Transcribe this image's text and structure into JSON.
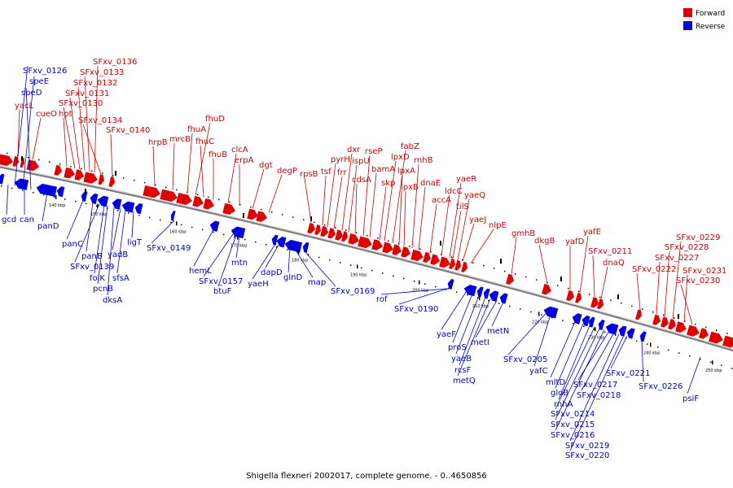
{
  "legend": {
    "forward_label": "Forward",
    "reverse_label": "Reverse",
    "forward_color": "#e00000",
    "reverse_color": "#0000e0"
  },
  "caption": "Shigella flexneri 2002017, complete genome. - 0..4650856",
  "scale_ticks": [
    "140 kbp",
    "150 kbp",
    "160 kbp",
    "170 kbp",
    "180 kbp",
    "190 kbp",
    "200 kbp",
    "210 kbp",
    "220 kbp",
    "230 kbp",
    "240 kbp",
    "250 kbp"
  ],
  "forward_genes": [
    "yacL",
    "cueO",
    "hpt",
    "SFxv_0130",
    "SFxv_0131",
    "SFxv_0132",
    "SFxv_0133",
    "SFxv_0136",
    "SFxv_0134",
    "SFxv_0140",
    "hrpB",
    "mrcB",
    "fhuA",
    "fhuD",
    "fhuC",
    "fhuB",
    "clcA",
    "erpA",
    "dgt",
    "degP",
    "rpsB",
    "tsf",
    "pyrH",
    "frr",
    "dxr",
    "ispU",
    "cdsA",
    "rseP",
    "bamA",
    "skp",
    "lpxD",
    "fabZ",
    "lpxA",
    "lpxB",
    "rnhB",
    "dnaE",
    "accA",
    "ldcC",
    "yaeR",
    "tilS",
    "yaeQ",
    "yaeJ",
    "nlpE",
    "gmhB",
    "dkgB",
    "yafD",
    "yafE",
    "SFxv_0211",
    "dnaQ",
    "SFxv_0222",
    "SFxv_0227",
    "SFxv_0228",
    "SFxv_0229",
    "SFxv_0231",
    "SFxv_0230"
  ],
  "reverse_genes": [
    "SFxv_0126",
    "speE",
    "speD",
    "gcd",
    "can",
    "panD",
    "panC",
    "panB",
    "SFxv_0139",
    "folK",
    "pcnB",
    "dksA",
    "yadB",
    "sfsA",
    "ligT",
    "SFxv_0149",
    "hemL",
    "SFxv_0157",
    "btuF",
    "mtn",
    "yaeH",
    "dapD",
    "glnD",
    "map",
    "SFxv_0169",
    "rof",
    "SFxv_0190",
    "yaeF",
    "proS",
    "yaeB",
    "rcsF",
    "metQ",
    "metI",
    "metN",
    "SFxv_0205",
    "yafC",
    "mltD",
    "gloB",
    "rnhA",
    "SFxv_0214",
    "SFxv_0215",
    "SFxv_0216",
    "SFxv_0217",
    "SFxv_0218",
    "SFxv_0219",
    "SFxv_0220",
    "SFxv_0221",
    "SFxv_0226",
    "psiF"
  ]
}
